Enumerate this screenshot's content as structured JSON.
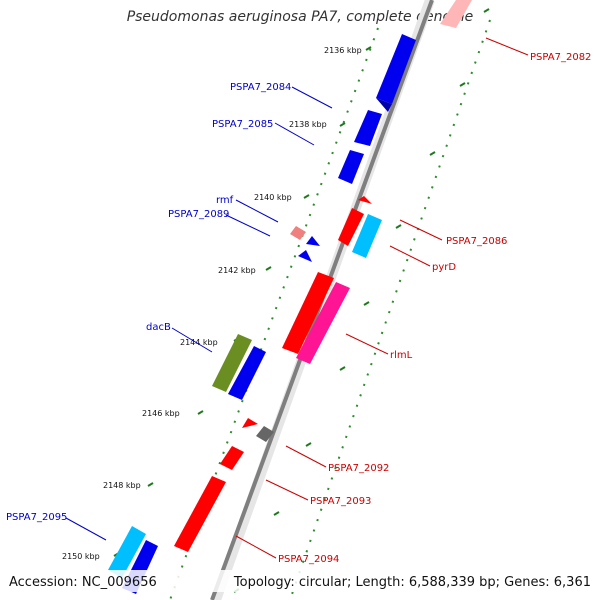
{
  "title": "Pseudomonas aeruginosa PA7, complete genome",
  "footer": {
    "accession": "Accession: NC_009656",
    "topology": "Topology: circular; Length: 6,588,339 bp; Genes: 6,361"
  },
  "ticks": [
    "2136 kbp",
    "2138 kbp",
    "2140 kbp",
    "2142 kbp",
    "2144 kbp",
    "2146 kbp",
    "2148 kbp",
    "2150 kbp"
  ],
  "genes": [
    {
      "label": "PSPA7_2082",
      "strand": "reverse",
      "color": "#ff0000"
    },
    {
      "label": "PSPA7_2084",
      "strand": "forward",
      "color": "#0000ff"
    },
    {
      "label": "PSPA7_2085",
      "strand": "forward",
      "color": "#0000ff"
    },
    {
      "label": "rmf",
      "strand": "forward",
      "color": "#0000ff"
    },
    {
      "label": "PSPA7_2089",
      "strand": "forward",
      "color": "#0000ff"
    },
    {
      "label": "PSPA7_2086",
      "strand": "reverse",
      "color": "#ff0000"
    },
    {
      "label": "pyrD",
      "strand": "reverse",
      "color": "#00bfff"
    },
    {
      "label": "rlmL",
      "strand": "reverse",
      "color": "#ff1493"
    },
    {
      "label": "dacB",
      "strand": "forward",
      "color": "#6b8e23"
    },
    {
      "label": "PSPA7_2092",
      "strand": "reverse",
      "color": "#ff0000"
    },
    {
      "label": "PSPA7_2093",
      "strand": "reverse",
      "color": "#ff0000"
    },
    {
      "label": "PSPA7_2094",
      "strand": "reverse",
      "color": "#ff0000"
    },
    {
      "label": "PSPA7_2095",
      "strand": "forward",
      "color": "#00bfff"
    }
  ],
  "colors": {
    "forward_label": "#0000cc",
    "reverse_label": "#cc0000",
    "backbone": "#888888",
    "gc_dots": "#228b22",
    "pseudo": "#f08080",
    "grey_gene": "#666666"
  }
}
